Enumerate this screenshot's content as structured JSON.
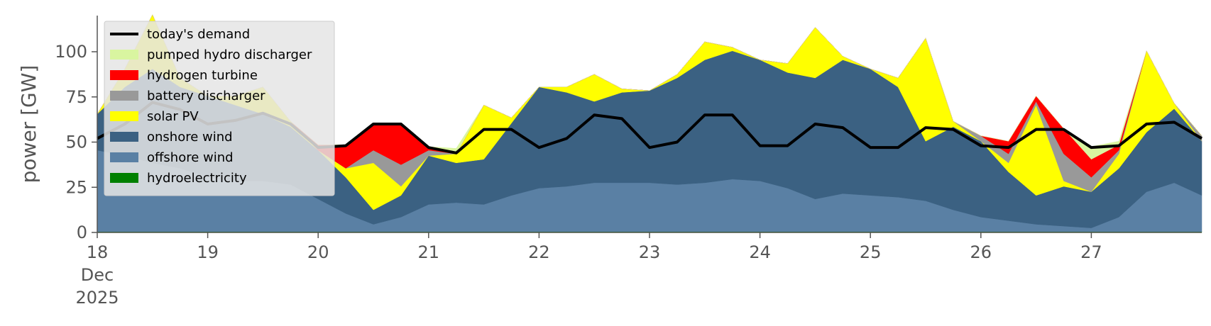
{
  "chart_data": {
    "type": "stacked-area",
    "ylabel": "power [GW]",
    "x": [
      18,
      18.25,
      18.5,
      18.75,
      19,
      19.25,
      19.5,
      19.75,
      20,
      20.25,
      20.5,
      20.75,
      21,
      21.25,
      21.5,
      21.75,
      22,
      22.25,
      22.5,
      22.75,
      23,
      23.25,
      23.5,
      23.75,
      24,
      24.25,
      24.5,
      24.75,
      25,
      25.25,
      25.5,
      25.75,
      26,
      26.25,
      26.5,
      26.75,
      27,
      27.25,
      27.5,
      27.75,
      28
    ],
    "xlim": [
      18,
      28
    ],
    "xticks": [
      18,
      19,
      20,
      21,
      22,
      23,
      24,
      25,
      26,
      27
    ],
    "x_month": "Dec",
    "x_year": "2025",
    "ylim": [
      0,
      120
    ],
    "yticks": [
      0,
      25,
      50,
      75,
      100
    ],
    "legend": "upper left",
    "line": {
      "name": "today's demand",
      "color": "#000000",
      "values": [
        52,
        60,
        72,
        68,
        60,
        62,
        66,
        60,
        47,
        48,
        60,
        60,
        47,
        44,
        57,
        57,
        47,
        52,
        65,
        63,
        47,
        50,
        65,
        65,
        48,
        48,
        60,
        58,
        47,
        47,
        58,
        57,
        48,
        47,
        57,
        57,
        47,
        48,
        60,
        61,
        52
      ]
    },
    "series": [
      {
        "name": "hydroelectricity",
        "color": "#008000",
        "values": [
          0.5,
          0.5,
          0.5,
          0.5,
          0.5,
          0.5,
          0.5,
          0.5,
          0.5,
          0.5,
          0.5,
          0.5,
          0.5,
          0.5,
          0.5,
          0.5,
          0.5,
          0.5,
          0.5,
          0.5,
          0.5,
          0.5,
          0.5,
          0.5,
          0.5,
          0.5,
          0.5,
          0.5,
          0.5,
          0.5,
          0.5,
          0.5,
          0.5,
          0.5,
          0.5,
          0.5,
          0.5,
          0.5,
          0.5,
          0.5,
          0.5
        ]
      },
      {
        "name": "offshore wind",
        "color": "#5a80a4",
        "values": [
          45,
          42,
          38,
          35,
          30,
          28,
          28,
          26,
          18,
          10,
          4,
          8,
          15,
          16,
          15,
          20,
          24,
          25,
          27,
          27,
          27,
          26,
          27,
          29,
          28,
          24,
          18,
          21,
          20,
          19,
          17,
          12,
          8,
          6,
          4,
          3,
          2,
          8,
          22,
          27,
          20
        ]
      },
      {
        "name": "onshore wind",
        "color": "#3b6182",
        "values": [
          20,
          38,
          52,
          45,
          45,
          42,
          37,
          32,
          27,
          20,
          8,
          12,
          27,
          22,
          25,
          40,
          56,
          52,
          45,
          50,
          51,
          59,
          68,
          71,
          67,
          64,
          67,
          74,
          70,
          61,
          33,
          46,
          42,
          27,
          16,
          22,
          20,
          27,
          33,
          41,
          30
        ]
      },
      {
        "name": "solar PV",
        "color": "#ffff00",
        "values": [
          0,
          10,
          30,
          5,
          0,
          5,
          15,
          3,
          0,
          5,
          26,
          5,
          0,
          5,
          30,
          3,
          0,
          3,
          15,
          2,
          0,
          2,
          10,
          2,
          0,
          5,
          28,
          2,
          0,
          5,
          57,
          3,
          0,
          5,
          50,
          3,
          0,
          8,
          45,
          3,
          0
        ]
      },
      {
        "name": "battery discharger",
        "color": "#999999",
        "values": [
          0,
          0,
          0,
          0,
          0,
          0,
          0,
          0,
          0,
          0,
          7,
          12,
          3,
          0,
          0,
          0,
          0,
          0,
          0,
          0,
          0,
          0,
          0,
          0,
          0,
          0,
          0,
          0,
          0,
          0,
          0,
          0,
          3,
          5,
          2,
          15,
          8,
          2,
          0,
          0,
          3
        ]
      },
      {
        "name": "hydrogen turbine",
        "color": "#ff0000",
        "values": [
          0,
          0,
          0,
          0,
          0,
          0,
          0,
          0,
          3,
          13,
          15,
          23,
          2,
          0,
          0,
          0,
          0,
          0,
          0,
          0,
          0,
          0,
          0,
          0,
          0,
          0,
          0,
          0,
          0,
          0,
          0,
          0,
          0,
          7,
          3,
          14,
          10,
          3,
          0,
          0,
          0
        ]
      },
      {
        "name": "pumped hydro discharger",
        "color": "#d9f5a0",
        "values": [
          0,
          0,
          0,
          0,
          0,
          0,
          0,
          0,
          0,
          0,
          0,
          0,
          0,
          3,
          0,
          0,
          0,
          0,
          0,
          0,
          0,
          0,
          0,
          0,
          0,
          0,
          0,
          0,
          0,
          0,
          0,
          0,
          0,
          0,
          0,
          0,
          7,
          2,
          0,
          0,
          0
        ]
      }
    ]
  }
}
